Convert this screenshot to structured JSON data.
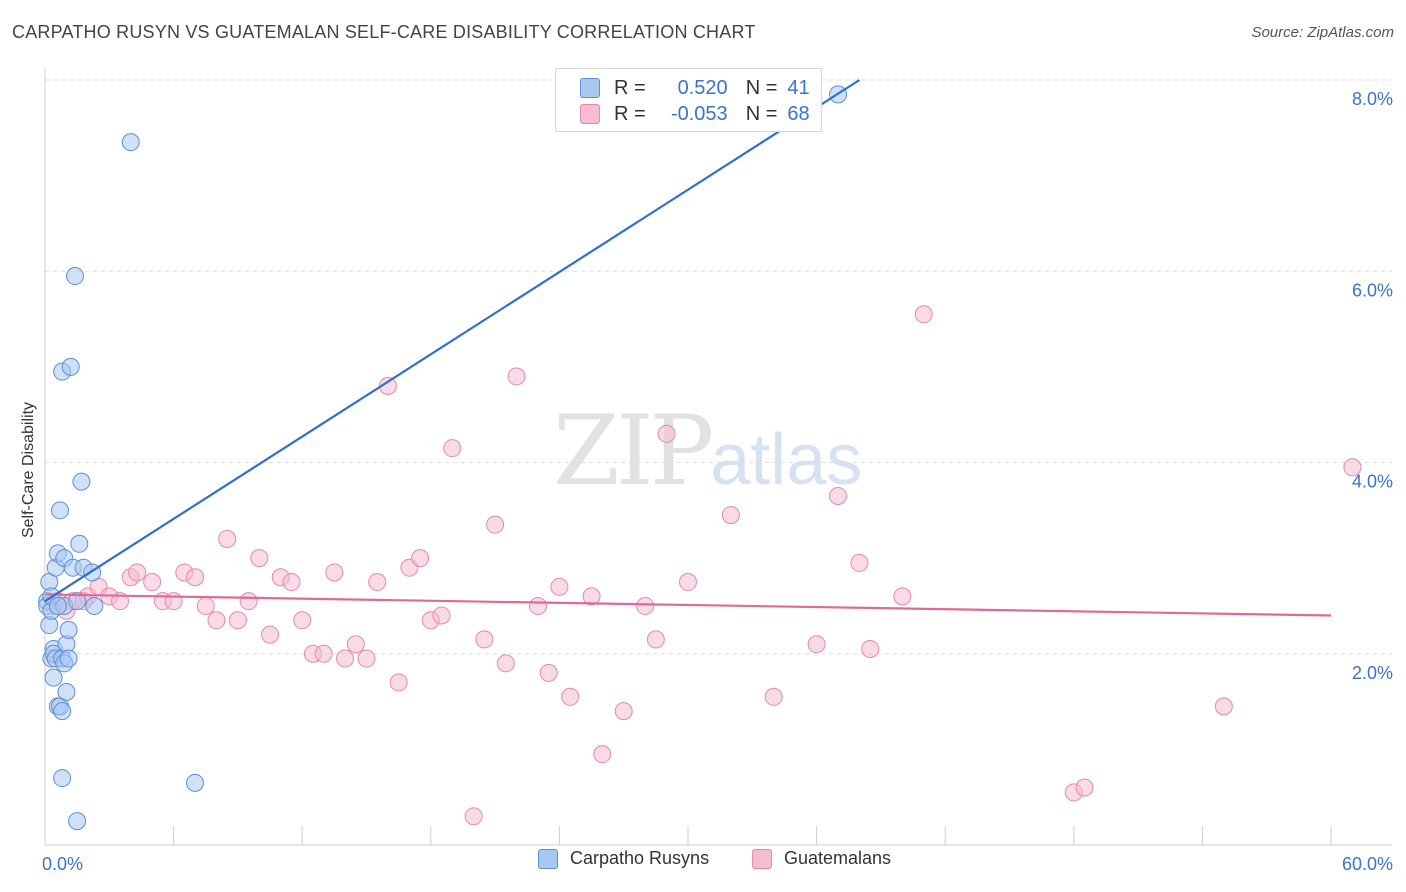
{
  "header": {
    "title": "CARPATHO RUSYN VS GUATEMALAN SELF-CARE DISABILITY CORRELATION CHART",
    "source": "Source: ZipAtlas.com"
  },
  "watermark": {
    "zip": "ZIP",
    "atlas": "atlas"
  },
  "legend_top": {
    "rows": [
      {
        "r_label": "R =",
        "r_value": "0.520",
        "n_label": "N =",
        "n_value": "41"
      },
      {
        "r_label": "R =",
        "r_value": "-0.053",
        "n_label": "N =",
        "n_value": "68"
      }
    ]
  },
  "legend_bottom": {
    "items": [
      {
        "label": "Carpatho Rusyns"
      },
      {
        "label": "Guatemalans"
      }
    ]
  },
  "colors": {
    "blue_fill": "#a9c8f0",
    "blue_stroke": "#5b8fd6",
    "blue_line": "#2f6fcf",
    "pink_fill": "#f6bcd0",
    "pink_stroke": "#e38aa9",
    "pink_line": "#e0699a",
    "tick_label": "#3b73c8",
    "grid": "#dddddd"
  },
  "chart_data": {
    "type": "scatter",
    "title": "CARPATHO RUSYN VS GUATEMALAN SELF-CARE DISABILITY CORRELATION CHART",
    "xlabel": "",
    "ylabel": "Self-Care Disability",
    "xlim": [
      0,
      60
    ],
    "ylim": [
      0,
      8
    ],
    "x_tick_labels": [
      "0.0%",
      "60.0%"
    ],
    "y_ticks": [
      2,
      4,
      6,
      8
    ],
    "y_tick_labels": [
      "2.0%",
      "4.0%",
      "6.0%",
      "8.0%"
    ],
    "grid": true,
    "legend_position": "top-center",
    "series": [
      {
        "name": "Carpatho Rusyns",
        "color": "#a9c8f0",
        "trend": {
          "x": [
            0.0,
            38.0
          ],
          "y": [
            2.55,
            8.0
          ]
        },
        "points": [
          [
            0.1,
            2.55
          ],
          [
            0.1,
            2.5
          ],
          [
            0.2,
            2.3
          ],
          [
            0.2,
            2.75
          ],
          [
            0.3,
            2.45
          ],
          [
            0.3,
            1.95
          ],
          [
            0.4,
            2.05
          ],
          [
            0.4,
            1.75
          ],
          [
            0.4,
            2.0
          ],
          [
            0.5,
            2.9
          ],
          [
            0.5,
            1.95
          ],
          [
            0.6,
            3.05
          ],
          [
            0.6,
            1.45
          ],
          [
            0.7,
            3.5
          ],
          [
            0.7,
            1.45
          ],
          [
            0.8,
            1.95
          ],
          [
            0.8,
            1.4
          ],
          [
            0.8,
            4.95
          ],
          [
            0.8,
            0.7
          ],
          [
            0.9,
            2.5
          ],
          [
            0.9,
            1.9
          ],
          [
            0.9,
            3.0
          ],
          [
            1.0,
            1.6
          ],
          [
            1.0,
            2.1
          ],
          [
            1.1,
            1.95
          ],
          [
            1.1,
            2.25
          ],
          [
            1.2,
            5.0
          ],
          [
            1.3,
            2.9
          ],
          [
            1.4,
            5.95
          ],
          [
            1.5,
            2.55
          ],
          [
            1.5,
            0.25
          ],
          [
            1.6,
            3.15
          ],
          [
            1.7,
            3.8
          ],
          [
            1.8,
            2.9
          ],
          [
            2.2,
            2.85
          ],
          [
            2.3,
            2.5
          ],
          [
            4.0,
            7.35
          ],
          [
            7.0,
            0.65
          ],
          [
            37.0,
            7.85
          ],
          [
            0.3,
            2.6
          ],
          [
            0.6,
            2.5
          ]
        ]
      },
      {
        "name": "Guatemalans",
        "color": "#f6bcd0",
        "trend": {
          "x": [
            0.0,
            60.0
          ],
          "y": [
            2.62,
            2.4
          ]
        },
        "points": [
          [
            0.4,
            2.5
          ],
          [
            0.6,
            2.55
          ],
          [
            1.0,
            2.45
          ],
          [
            1.3,
            2.55
          ],
          [
            2.0,
            2.6
          ],
          [
            2.5,
            2.7
          ],
          [
            3.0,
            2.6
          ],
          [
            3.5,
            2.55
          ],
          [
            4.0,
            2.8
          ],
          [
            4.3,
            2.85
          ],
          [
            5.0,
            2.75
          ],
          [
            5.5,
            2.55
          ],
          [
            6.0,
            2.55
          ],
          [
            6.5,
            2.85
          ],
          [
            7.0,
            2.8
          ],
          [
            7.5,
            2.5
          ],
          [
            8.0,
            2.35
          ],
          [
            8.5,
            3.2
          ],
          [
            9.0,
            2.35
          ],
          [
            9.5,
            2.55
          ],
          [
            10.0,
            3.0
          ],
          [
            10.5,
            2.2
          ],
          [
            11.0,
            2.8
          ],
          [
            11.5,
            2.75
          ],
          [
            12.0,
            2.35
          ],
          [
            12.5,
            2.0
          ],
          [
            13.0,
            2.0
          ],
          [
            13.5,
            2.85
          ],
          [
            14.0,
            1.95
          ],
          [
            14.5,
            2.1
          ],
          [
            15.0,
            1.95
          ],
          [
            15.5,
            2.75
          ],
          [
            16.0,
            4.8
          ],
          [
            16.5,
            1.7
          ],
          [
            17.0,
            2.9
          ],
          [
            17.5,
            3.0
          ],
          [
            18.0,
            2.35
          ],
          [
            18.5,
            2.4
          ],
          [
            19.0,
            4.15
          ],
          [
            20.0,
            0.3
          ],
          [
            20.5,
            2.15
          ],
          [
            21.0,
            3.35
          ],
          [
            21.5,
            1.9
          ],
          [
            22.0,
            4.9
          ],
          [
            23.0,
            2.5
          ],
          [
            23.5,
            1.8
          ],
          [
            24.0,
            2.7
          ],
          [
            24.5,
            1.55
          ],
          [
            25.5,
            2.6
          ],
          [
            26.0,
            0.95
          ],
          [
            27.0,
            1.4
          ],
          [
            28.0,
            2.5
          ],
          [
            28.5,
            2.15
          ],
          [
            29.0,
            4.3
          ],
          [
            30.0,
            2.75
          ],
          [
            32.0,
            3.45
          ],
          [
            34.0,
            1.55
          ],
          [
            36.0,
            2.1
          ],
          [
            37.0,
            3.65
          ],
          [
            38.0,
            2.95
          ],
          [
            38.5,
            2.05
          ],
          [
            40.0,
            2.6
          ],
          [
            41.0,
            5.55
          ],
          [
            48.0,
            0.55
          ],
          [
            48.5,
            0.6
          ],
          [
            55.0,
            1.45
          ],
          [
            61.0,
            3.95
          ],
          [
            1.8,
            2.55
          ]
        ]
      }
    ]
  }
}
